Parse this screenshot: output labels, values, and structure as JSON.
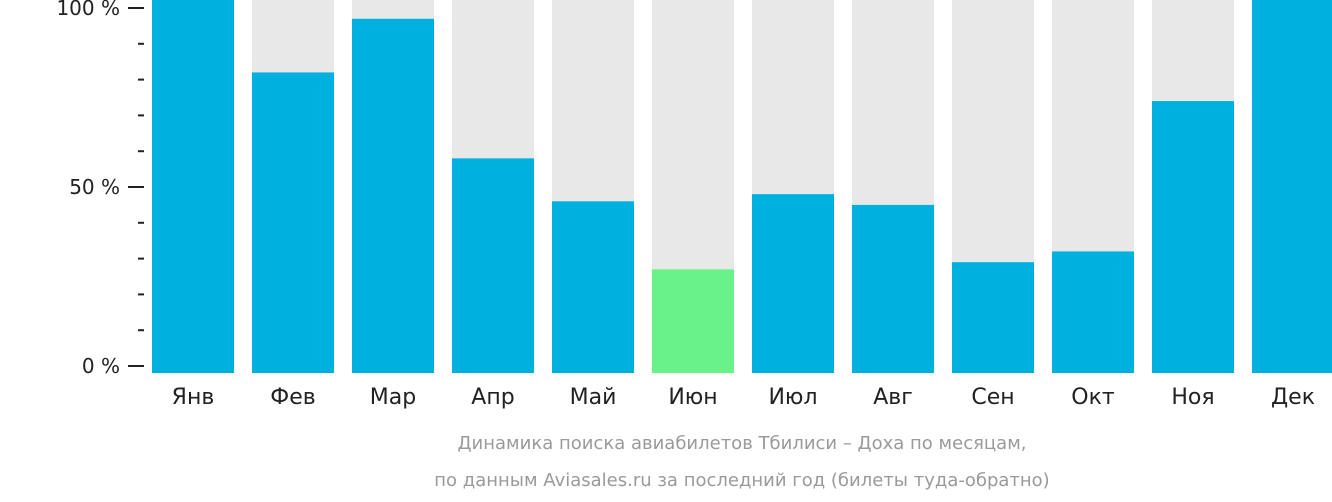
{
  "chart_data": {
    "type": "bar",
    "categories": [
      "Янв",
      "Фев",
      "Мар",
      "Апр",
      "Май",
      "Июн",
      "Июл",
      "Авг",
      "Сен",
      "Окт",
      "Ноя",
      "Дек"
    ],
    "values": [
      100,
      82,
      97,
      58,
      46,
      27,
      48,
      45,
      29,
      32,
      74,
      100
    ],
    "highlight_index": 5,
    "ylim": [
      0,
      100
    ],
    "y_ticks": [
      {
        "value": 0,
        "label": "0 %"
      },
      {
        "value": 50,
        "label": "50 %"
      },
      {
        "value": 100,
        "label": "100 %"
      }
    ],
    "minor_tick_step": 10,
    "grid": false,
    "colors": {
      "bar": "#00b0de",
      "highlight": "#6af28a",
      "background_bar": "#e8e8e8",
      "axis": "#222222",
      "caption": "#9a9a9a"
    },
    "caption_lines": [
      "Динамика поиска авиабилетов Тбилиси – Доха по месяцам,",
      "по данным Aviasales.ru за последний год (билеты туда-обратно)"
    ]
  }
}
